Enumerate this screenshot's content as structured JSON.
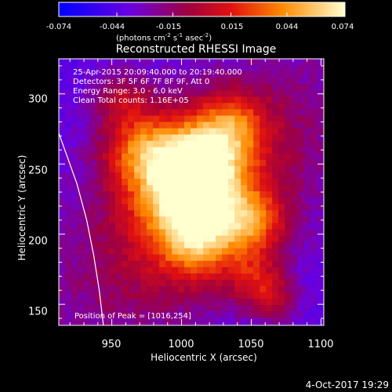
{
  "chart_data": {
    "type": "heatmap",
    "title": "Reconstructed RHESSI Image",
    "xlabel": "Heliocentric X (arcsec)",
    "ylabel": "Heliocentric Y (arcsec)",
    "xlim": [
      912,
      1102
    ],
    "ylim": [
      135,
      325
    ],
    "x_ticks": [
      "950",
      "1000",
      "1050",
      "1100"
    ],
    "y_ticks": [
      "150",
      "200",
      "250",
      "300"
    ],
    "colorbar": {
      "ticks": [
        "-0.074",
        "-0.044",
        "-0.015",
        "0.015",
        "0.044",
        "0.074"
      ],
      "range": [
        -0.074,
        0.074
      ],
      "unit_prefix": "(photons cm",
      "unit_exp1": "-2",
      "unit_mid": " s",
      "unit_exp2": "-1",
      "unit_mid2": " asec",
      "unit_exp3": "-2",
      "unit_suffix": ")"
    },
    "annotations": [
      "25-Apr-2015 20:09:40.000 to 20:19:40.000",
      "Detectors: 3F 5F 6F 7F 8F 9F, Att 0",
      "Energy Range: 3.0 - 6.0 keV",
      "Clean     Total counts: 1.16E+05"
    ],
    "peak_label": "Position of Peak = [1016,254]",
    "peak": {
      "x": 1016,
      "y": 254
    },
    "limb_curve": [
      [
        912,
        272
      ],
      [
        925,
        236
      ],
      [
        932,
        210
      ],
      [
        937,
        185
      ],
      [
        941,
        160
      ],
      [
        944,
        135
      ]
    ],
    "source_components": [
      {
        "x": 1012,
        "y": 255,
        "sigma": 22,
        "amp": 0.07
      },
      {
        "x": 968,
        "y": 262,
        "sigma": 20,
        "amp": 0.055
      },
      {
        "x": 1000,
        "y": 228,
        "sigma": 24,
        "amp": 0.06
      },
      {
        "x": 1048,
        "y": 210,
        "sigma": 16,
        "amp": 0.052
      },
      {
        "x": 1010,
        "y": 196,
        "sigma": 18,
        "amp": 0.045
      },
      {
        "x": 1050,
        "y": 170,
        "sigma": 14,
        "amp": 0.035
      },
      {
        "x": 1065,
        "y": 155,
        "sigma": 11,
        "amp": 0.03
      },
      {
        "x": 955,
        "y": 300,
        "sigma": 14,
        "amp": 0.03
      },
      {
        "x": 1035,
        "y": 282,
        "sigma": 16,
        "amp": 0.038
      }
    ],
    "background_level": -0.04
  },
  "footer": {
    "date": "4-Oct-2017 19:29"
  },
  "colors": {
    "axis": "#ffffff",
    "background": "#000000"
  }
}
